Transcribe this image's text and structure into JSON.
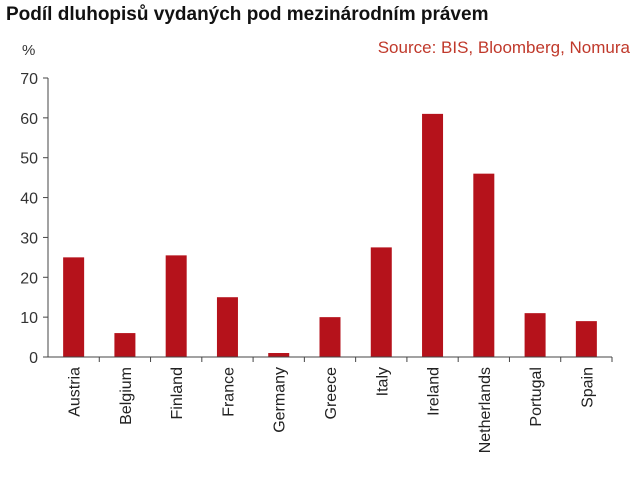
{
  "header": {
    "title": "Podíl dluhopisů vydaných pod mezinárodním právem",
    "source": "Source: BIS, Bloomberg, Nomura"
  },
  "colors": {
    "bar": "#b5121b",
    "source": "#c0392b",
    "axis": "#444444"
  },
  "chart_data": {
    "type": "bar",
    "title": "Podíl dluhopisů vydaných pod mezinárodním právem",
    "ylabel": "%",
    "xlabel": "",
    "ylim": [
      0,
      70
    ],
    "yticks": [
      0,
      10,
      20,
      30,
      40,
      50,
      60,
      70
    ],
    "grid": false,
    "categories": [
      "Austria",
      "Belgium",
      "Finland",
      "France",
      "Germany",
      "Greece",
      "Italy",
      "Ireland",
      "Netherlands",
      "Portugal",
      "Spain"
    ],
    "values": [
      25,
      6,
      25.5,
      15,
      1,
      10,
      27.5,
      61,
      46,
      11,
      9
    ]
  }
}
